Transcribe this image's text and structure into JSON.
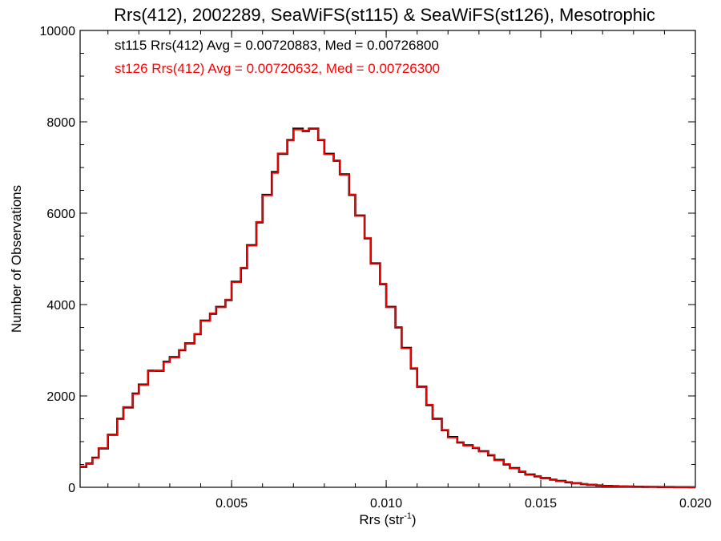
{
  "chart_data": {
    "type": "line",
    "title": "Rrs(412), 2002289, SeaWiFS(st115) & SeaWiFS(st126), Mesotrophic",
    "xlabel": "Rrs (str",
    "xlabel_sup": "-1",
    "xlabel_close": ")",
    "ylabel": "Number of Observations",
    "xlim": [
      0.0001,
      0.02
    ],
    "ylim": [
      0,
      10000
    ],
    "x_ticks": [
      0.005,
      0.01,
      0.015,
      0.02
    ],
    "x_tick_labels": [
      "0.005",
      "0.010",
      "0.015",
      "0.020"
    ],
    "y_ticks": [
      0,
      2000,
      4000,
      6000,
      8000,
      10000
    ],
    "y_tick_labels": [
      "0",
      "2000",
      "4000",
      "6000",
      "8000",
      "10000"
    ],
    "annotations": [
      {
        "text": "st115 Rrs(412) Avg = 0.00720883, Med = 0.00726800",
        "color": "#000000"
      },
      {
        "text": "st126 Rrs(412) Avg = 0.00720632, Med = 0.00726300",
        "color": "#ff0000"
      }
    ],
    "x": [
      0.0001,
      0.0003,
      0.0005,
      0.0007,
      0.001,
      0.0013,
      0.0015,
      0.0018,
      0.002,
      0.0023,
      0.0025,
      0.0028,
      0.003,
      0.0033,
      0.0035,
      0.0038,
      0.004,
      0.0043,
      0.0045,
      0.0048,
      0.005,
      0.0053,
      0.0055,
      0.0058,
      0.006,
      0.0063,
      0.0065,
      0.0068,
      0.007,
      0.0073,
      0.0075,
      0.0078,
      0.008,
      0.0083,
      0.0085,
      0.0088,
      0.009,
      0.0093,
      0.0095,
      0.0098,
      0.01,
      0.0103,
      0.0105,
      0.0108,
      0.011,
      0.0113,
      0.0115,
      0.0118,
      0.012,
      0.0123,
      0.0125,
      0.0128,
      0.013,
      0.0133,
      0.0135,
      0.0138,
      0.014,
      0.0143,
      0.0145,
      0.0148,
      0.015,
      0.0153,
      0.0155,
      0.0158,
      0.016,
      0.0163,
      0.0165,
      0.0168,
      0.017,
      0.0173,
      0.0175,
      0.0178,
      0.018,
      0.0183,
      0.0185,
      0.0188,
      0.019,
      0.0193,
      0.0195,
      0.0198,
      0.02
    ],
    "series": [
      {
        "name": "st115",
        "color": "#000000",
        "values": [
          450,
          520,
          650,
          850,
          1150,
          1500,
          1750,
          2050,
          2250,
          2550,
          2550,
          2750,
          2850,
          3000,
          3150,
          3350,
          3650,
          3800,
          3950,
          4100,
          4500,
          4800,
          5300,
          5800,
          6400,
          6900,
          7300,
          7600,
          7850,
          7800,
          7850,
          7600,
          7300,
          7150,
          6850,
          6400,
          5950,
          5450,
          4900,
          4450,
          3950,
          3500,
          3050,
          2600,
          2200,
          1800,
          1500,
          1250,
          1100,
          980,
          920,
          860,
          790,
          700,
          600,
          500,
          420,
          340,
          280,
          240,
          200,
          170,
          140,
          110,
          90,
          70,
          55,
          40,
          30,
          25,
          20,
          15,
          12,
          10,
          8,
          6,
          5,
          4,
          3,
          2,
          2
        ]
      },
      {
        "name": "st126",
        "color": "#ff0000",
        "values": [
          460,
          510,
          640,
          860,
          1140,
          1490,
          1760,
          2040,
          2240,
          2540,
          2560,
          2740,
          2840,
          3010,
          3140,
          3360,
          3640,
          3810,
          3940,
          4110,
          4490,
          4810,
          5290,
          5810,
          6390,
          6880,
          7310,
          7590,
          7830,
          7810,
          7840,
          7610,
          7290,
          7160,
          6840,
          6410,
          5940,
          5460,
          4890,
          4460,
          3940,
          3510,
          3040,
          2610,
          2190,
          1810,
          1490,
          1260,
          1090,
          990,
          910,
          870,
          780,
          710,
          590,
          510,
          410,
          350,
          270,
          250,
          190,
          175,
          135,
          115,
          85,
          72,
          52,
          42,
          28,
          26,
          18,
          16,
          11,
          10,
          7,
          6,
          4,
          4,
          3,
          2,
          2
        ]
      }
    ]
  }
}
